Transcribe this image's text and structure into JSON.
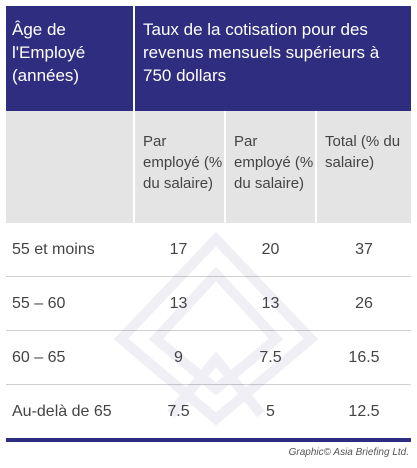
{
  "header": {
    "age_label": "Âge de l'Employé (années)",
    "rate_label": "Taux de la cotisation pour des revenus mensuels supérieurs à 750 dollars"
  },
  "subheaders": [
    "Par employé (% du salaire)",
    "Par employé (% du salaire)",
    "Total (% du salaire)"
  ],
  "rows": [
    {
      "age": "55 et moins",
      "v1": "17",
      "v2": "20",
      "total": "37"
    },
    {
      "age": "55 – 60",
      "v1": "13",
      "v2": "13",
      "total": "26"
    },
    {
      "age": "60 – 65",
      "v1": "9",
      "v2": "7.5",
      "total": "16.5"
    },
    {
      "age": "Au-delà de 65",
      "v1": "7.5",
      "v2": "5",
      "total": "12.5"
    }
  ],
  "credit": "Graphic© Asia Briefing Ltd.",
  "colors": {
    "header_bg": "#2f2d7f",
    "subheader_bg": "#e4e4e4"
  }
}
